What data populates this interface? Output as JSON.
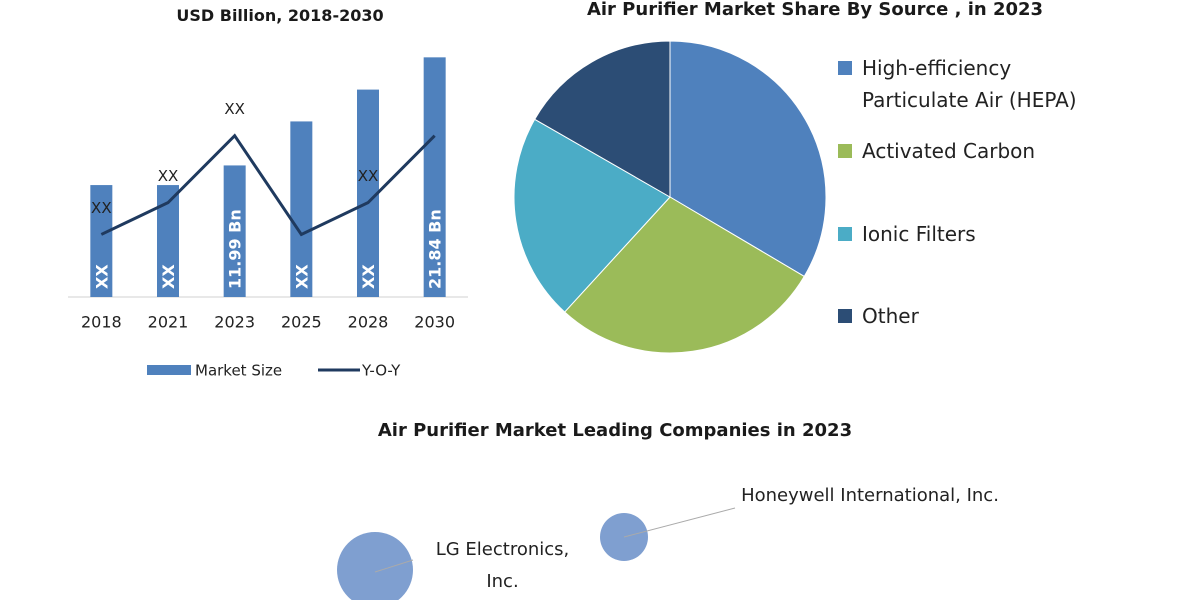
{
  "chart_data": [
    {
      "type": "bar",
      "title": "USD Billion, 2018-2030",
      "categories": [
        "2018",
        "2021",
        "2023",
        "2025",
        "2028",
        "2030"
      ],
      "ylim": [
        0,
        22.6
      ],
      "series": [
        {
          "name": "Market Size",
          "type": "bar",
          "color": "#4f81bd",
          "values": [
            10.2,
            10.2,
            11.99,
            16.0,
            18.9,
            21.84
          ],
          "value_labels": [
            "XX",
            "XX",
            "11.99 Bn",
            "XX",
            "XX",
            "21.84 Bn"
          ]
        },
        {
          "name": "Y-O-Y",
          "type": "line",
          "color": "#1f3a5f",
          "values": [
            5.7,
            8.6,
            14.7,
            5.7,
            8.6,
            14.7
          ],
          "value_labels": [
            "XX",
            "XX",
            "XX",
            null,
            "XX",
            null
          ]
        }
      ]
    },
    {
      "type": "pie",
      "title": "Air Purifier Market Share By Source , in 2023",
      "categories": [
        "High-efficiency Particulate Air (HEPA)",
        "Activated Carbon",
        "Ionic Filters",
        "Other"
      ],
      "values": [
        33.5,
        28.3,
        21.5,
        16.7
      ],
      "colors": [
        "#4f81bd",
        "#9bbb59",
        "#4bacc6",
        "#2c4d75"
      ]
    }
  ],
  "leading_companies": {
    "title": "Air Purifier Market Leading Companies in 2023",
    "items": [
      "LG Electronics, Inc.",
      "Honeywell International, Inc."
    ]
  }
}
